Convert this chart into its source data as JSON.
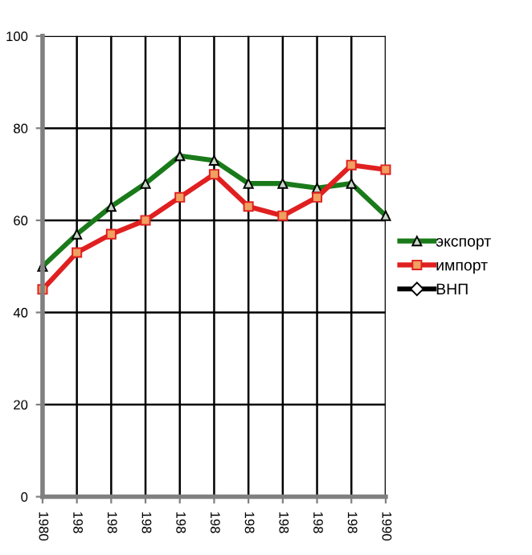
{
  "chart_data": {
    "type": "line",
    "categories": [
      "1980",
      "198",
      "198",
      "198",
      "198",
      "198",
      "198",
      "198",
      "198",
      "198",
      "1990"
    ],
    "series": [
      {
        "name": "экспорт",
        "color": "#1a7a1a",
        "marker": "triangle",
        "values": [
          50,
          57,
          63,
          68,
          74,
          73,
          68,
          68,
          67,
          68,
          61
        ]
      },
      {
        "name": "импорт",
        "color": "#e02020",
        "marker": "square",
        "values": [
          45,
          53,
          57,
          60,
          65,
          70,
          63,
          61,
          65,
          72,
          71
        ]
      },
      {
        "name": "ВНП",
        "color": "#000000",
        "marker": "diamond",
        "values": [
          null,
          null,
          null,
          null,
          null,
          null,
          null,
          null,
          null,
          null,
          null
        ]
      }
    ],
    "ylim": [
      0,
      100
    ],
    "yticks": [
      0,
      20,
      40,
      60,
      80,
      100
    ],
    "grid": true,
    "legend": "right"
  }
}
